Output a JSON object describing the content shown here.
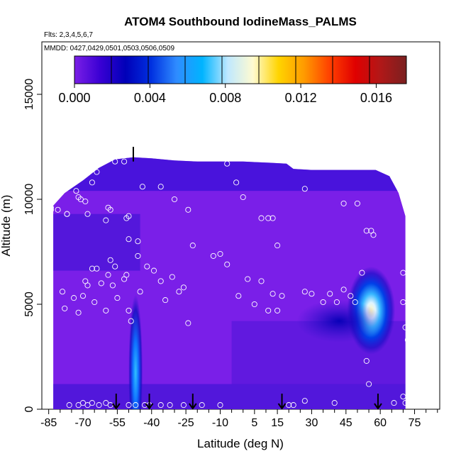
{
  "chart_data": {
    "type": "heatmap",
    "title": "ATOM4 Southbound IodineMass_PALMS",
    "subtitle_flights": "Flts: 2,3,4,5,6,7",
    "subtitle_dates": "MMDD: 0427,0429,0501,0503,0506,0509",
    "xlabel": "Latitude (deg N)",
    "ylabel": "Altitude (m)",
    "xlim": [
      -88,
      86
    ],
    "ylim": [
      0,
      17500
    ],
    "x_ticks": [
      -85,
      -70,
      -55,
      -40,
      -25,
      -10,
      5,
      15,
      30,
      45,
      60,
      75
    ],
    "x_minor_ticks": [
      -80,
      -75,
      -65,
      -60,
      -50,
      -45,
      -35,
      -30,
      -20,
      -15,
      -5,
      0,
      10,
      20,
      25,
      35,
      40,
      50,
      55,
      65,
      70,
      80,
      85
    ],
    "y_ticks": [
      0,
      5000,
      10000,
      15000
    ],
    "colorbar": {
      "min": 0.0,
      "max": 0.0176,
      "ticks": [
        "0.000",
        "0.004",
        "0.008",
        "0.012",
        "0.016"
      ],
      "tick_values": [
        0.0,
        0.004,
        0.008,
        0.012,
        0.016
      ],
      "colors": [
        "#7b1fe6",
        "#3a00d4",
        "#0000b8",
        "#0030e0",
        "#2f8cff",
        "#00b4ff",
        "#bfe8ff",
        "#fffbd0",
        "#ffd400",
        "#ff9a00",
        "#ff4000",
        "#e00000",
        "#b01818",
        "#7a2020"
      ]
    },
    "field_extent": {
      "lat_start": -83,
      "lat_end": 71,
      "top_boundary": [
        [
          -83,
          9700
        ],
        [
          -78,
          10300
        ],
        [
          -70,
          10900
        ],
        [
          -63,
          11500
        ],
        [
          -56,
          11900
        ],
        [
          -48,
          12000
        ],
        [
          -40,
          11950
        ],
        [
          -30,
          11850
        ],
        [
          -20,
          11800
        ],
        [
          -10,
          11800
        ],
        [
          0,
          11800
        ],
        [
          10,
          11750
        ],
        [
          19,
          11700
        ],
        [
          22,
          11450
        ],
        [
          30,
          11400
        ],
        [
          40,
          11400
        ],
        [
          50,
          11400
        ],
        [
          58,
          11400
        ],
        [
          64,
          11100
        ],
        [
          68,
          10300
        ],
        [
          71,
          9200
        ]
      ]
    },
    "enhancements": [
      {
        "lat": 56,
        "alt": 4700,
        "value": 0.0085
      },
      {
        "lat": -47,
        "alt": 400,
        "value": 0.0055
      },
      {
        "lat": 42,
        "alt": 4200,
        "value": 0.002
      }
    ],
    "flight_points": [
      [
        -86,
        6300
      ],
      [
        -84,
        9500
      ],
      [
        -81,
        9500
      ],
      [
        -79,
        5600
      ],
      [
        -78,
        4800
      ],
      [
        -77,
        9300
      ],
      [
        -74,
        5300
      ],
      [
        -72,
        4600
      ],
      [
        -70,
        5400
      ],
      [
        -69,
        6100
      ],
      [
        -68,
        5900
      ],
      [
        -66,
        6700
      ],
      [
        -65,
        5100
      ],
      [
        -64,
        6700
      ],
      [
        -62,
        6000
      ],
      [
        -60,
        4700
      ],
      [
        -59,
        6400
      ],
      [
        -58,
        7100
      ],
      [
        -57,
        5900
      ],
      [
        -56,
        6800
      ],
      [
        -55,
        5300
      ],
      [
        -52,
        6200
      ],
      [
        -50,
        4700
      ],
      [
        -49,
        4200
      ],
      [
        -51,
        6400
      ],
      [
        -46,
        7300
      ],
      [
        -45,
        5600
      ],
      [
        -42,
        6800
      ],
      [
        -39,
        6600
      ],
      [
        -36,
        6100
      ],
      [
        -34,
        5200
      ],
      [
        -31,
        6300
      ],
      [
        -28,
        5600
      ],
      [
        -26,
        5800
      ],
      [
        -24,
        4100
      ],
      [
        -22,
        7800
      ],
      [
        -13,
        7300
      ],
      [
        -10,
        7400
      ],
      [
        -7,
        6900
      ],
      [
        -2,
        5400
      ],
      [
        2,
        6200
      ],
      [
        5,
        5000
      ],
      [
        8,
        6100
      ],
      [
        11,
        4700
      ],
      [
        13,
        5500
      ],
      [
        15,
        4700
      ],
      [
        17,
        5400
      ],
      [
        27,
        5600
      ],
      [
        30,
        5500
      ],
      [
        35,
        5100
      ],
      [
        38,
        5500
      ],
      [
        41,
        5100
      ],
      [
        44,
        5700
      ],
      [
        47,
        5400
      ],
      [
        49,
        5100
      ],
      [
        52,
        6500
      ],
      [
        54,
        2300
      ],
      [
        55,
        1200
      ],
      [
        70,
        5100
      ],
      [
        71,
        3900
      ],
      [
        72,
        3300
      ],
      [
        70,
        6500
      ],
      [
        -84,
        9600
      ],
      [
        -77,
        9300
      ],
      [
        -73,
        10400
      ],
      [
        -72,
        10100
      ],
      [
        -71,
        10000
      ],
      [
        -69,
        9900
      ],
      [
        -68,
        9300
      ],
      [
        -66,
        10800
      ],
      [
        -64,
        11300
      ],
      [
        -60,
        9000
      ],
      [
        -59,
        9600
      ],
      [
        -58,
        9500
      ],
      [
        -56,
        11800
      ],
      [
        -52,
        11800
      ],
      [
        -51,
        9100
      ],
      [
        -50,
        9200
      ],
      [
        -44,
        10600
      ],
      [
        -36,
        10600
      ],
      [
        -30,
        10000
      ],
      [
        -24,
        9500
      ],
      [
        -7,
        11700
      ],
      [
        -3,
        10800
      ],
      [
        0,
        10100
      ],
      [
        8,
        9100
      ],
      [
        11,
        9100
      ],
      [
        13,
        9100
      ],
      [
        15,
        7800
      ],
      [
        20,
        11800
      ],
      [
        27,
        10500
      ],
      [
        44,
        9800
      ],
      [
        50,
        9800
      ],
      [
        54,
        8500
      ],
      [
        56,
        8500
      ],
      [
        57,
        8300
      ],
      [
        64,
        11400
      ],
      [
        -50,
        8100
      ],
      [
        -46,
        8000
      ],
      [
        -76,
        200
      ],
      [
        -72,
        200
      ],
      [
        -70,
        300
      ],
      [
        -68,
        200
      ],
      [
        -66,
        300
      ],
      [
        -63,
        200
      ],
      [
        -60,
        300
      ],
      [
        -58,
        200
      ],
      [
        -50,
        200
      ],
      [
        -47,
        200
      ],
      [
        -43,
        200
      ],
      [
        -41,
        200
      ],
      [
        -36,
        200
      ],
      [
        -32,
        200
      ],
      [
        -26,
        200
      ],
      [
        -18,
        200
      ],
      [
        -10,
        200
      ],
      [
        20,
        200
      ],
      [
        22,
        200
      ],
      [
        27,
        400
      ],
      [
        40,
        300
      ],
      [
        66,
        300
      ],
      [
        70,
        600
      ],
      [
        71,
        300
      ]
    ],
    "profile_markers": [
      -55.5,
      -41,
      -22,
      17,
      59
    ]
  }
}
